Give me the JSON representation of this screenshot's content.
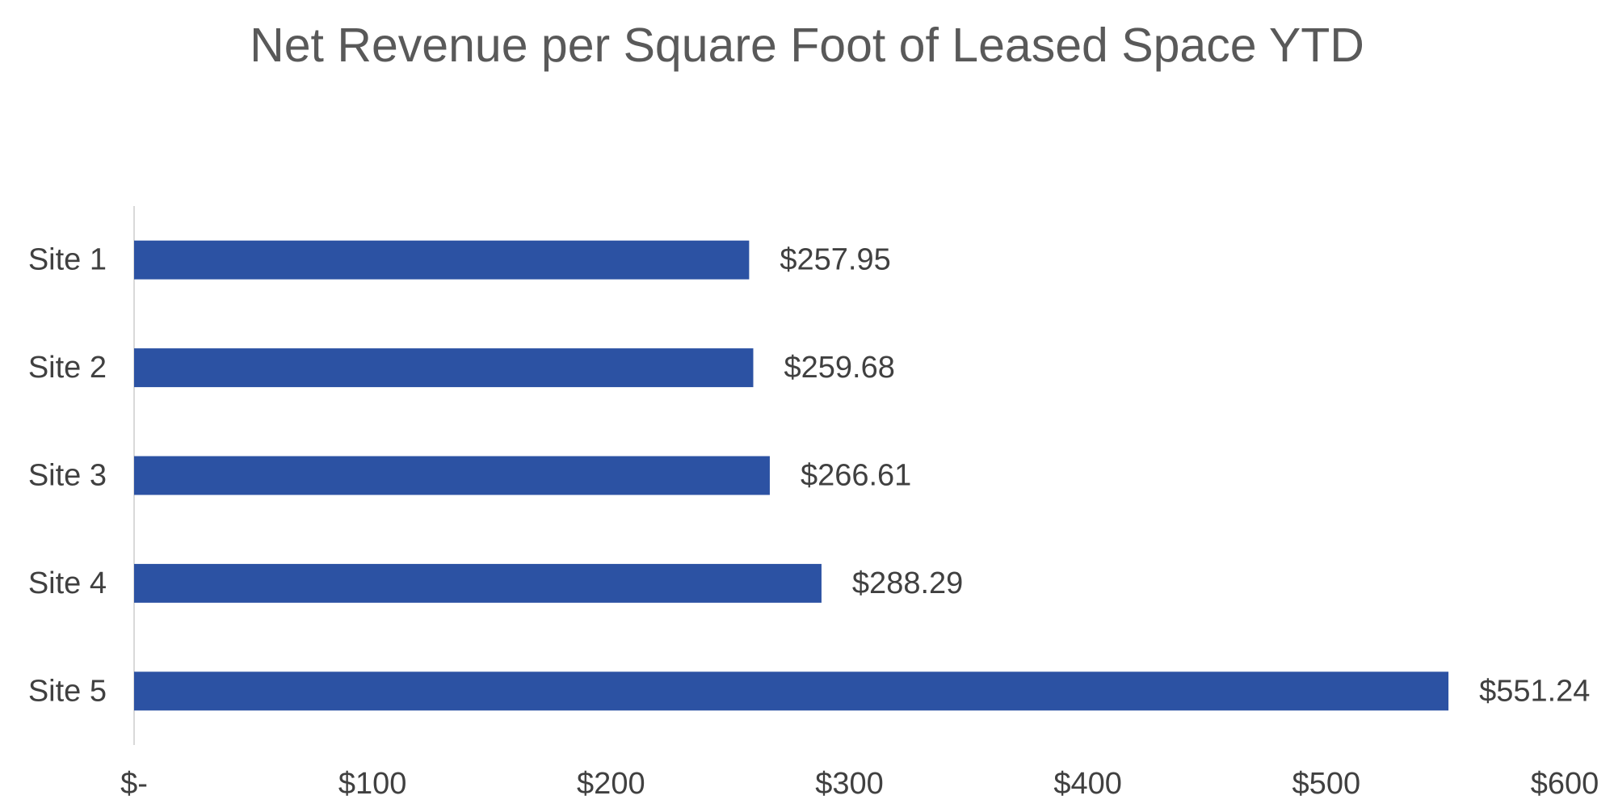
{
  "chart_data": {
    "type": "bar",
    "orientation": "horizontal",
    "title": "Net Revenue per Square Foot of Leased Space YTD",
    "xlabel": "",
    "ylabel": "",
    "categories": [
      "Site 1",
      "Site 2",
      "Site 3",
      "Site 4",
      "Site 5"
    ],
    "values": [
      257.95,
      259.68,
      266.61,
      288.29,
      551.24
    ],
    "data_labels": [
      "$257.95",
      "$259.68",
      "$266.61",
      "$288.29",
      "$551.24"
    ],
    "xlim": [
      0,
      600
    ],
    "x_ticks": [
      0,
      100,
      200,
      300,
      400,
      500,
      600
    ],
    "x_tick_labels": [
      "$-",
      "$100",
      "$200",
      "$300",
      "$400",
      "$500",
      "$600"
    ],
    "grid": false,
    "legend": "none",
    "colors": {
      "bar": "#2c52a3",
      "text": "#404040",
      "title": "#595959",
      "axis_line": "#d9d9d9"
    }
  }
}
